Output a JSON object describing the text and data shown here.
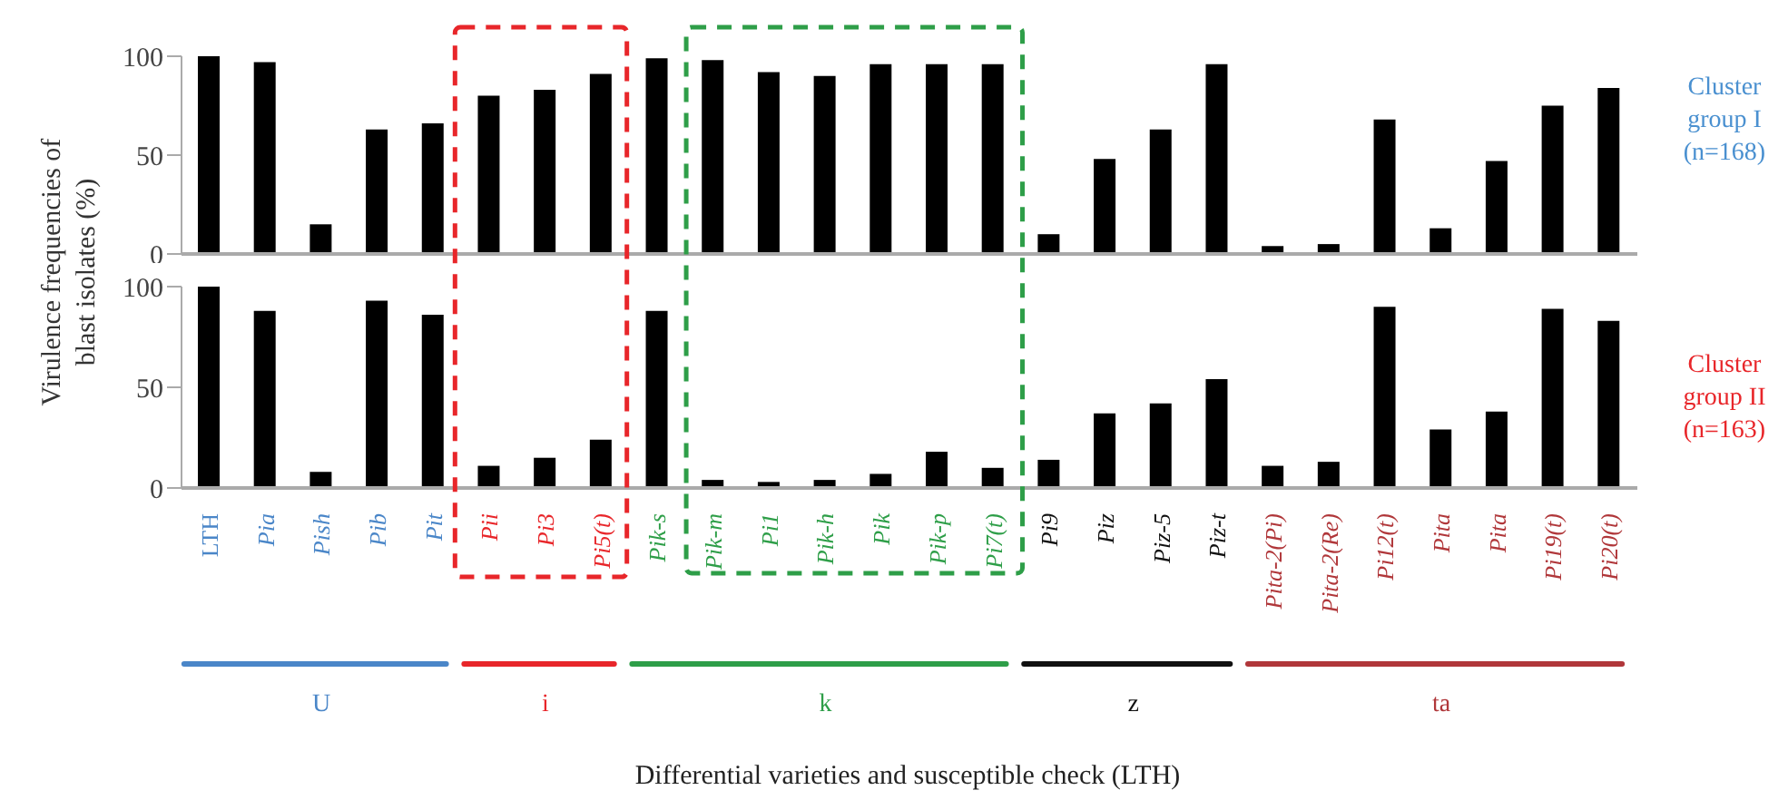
{
  "chart_data": [
    {
      "type": "bar",
      "ylabel": "Virulence frequencies of blast isolates (%)",
      "series": [
        {
          "name": "Cluster group I (n=168)",
          "color": "#000000",
          "values": [
            100,
            97,
            15,
            63,
            66,
            80,
            83,
            91,
            99,
            98,
            92,
            90,
            96,
            96,
            96,
            10,
            48,
            63,
            96,
            4,
            5,
            68,
            13,
            47,
            75,
            84
          ]
        }
      ],
      "ylim": [
        0,
        100
      ],
      "yticks": [
        0,
        50,
        100
      ],
      "tick_labels": "y"
    },
    {
      "type": "bar",
      "xlabel": "Differential varieties and susceptible check (LTH)",
      "categories": [
        "LTH",
        "Pia",
        "Pish",
        "Pib",
        "Pit",
        "Pii",
        "Pi3",
        "Pi5(t)",
        "Pik-s",
        "Pik-m",
        "Pi1",
        "Pik-h",
        "Pik",
        "Pik-p",
        "Pi7(t)",
        "Pi9",
        "Piz",
        "Piz-5",
        "Piz-t",
        "Pita-2(Pi)",
        "Pita-2(Re)",
        "Pi12(t)",
        "Pita",
        "Pita",
        "Pi19(t)",
        "Pi20(t)"
      ],
      "series": [
        {
          "name": "Cluster group II (n=163)",
          "color": "#000000",
          "values": [
            100,
            88,
            8,
            93,
            86,
            11,
            15,
            24,
            88,
            4,
            3,
            4,
            7,
            18,
            10,
            14,
            37,
            42,
            54,
            11,
            13,
            90,
            29,
            38,
            89,
            83
          ]
        }
      ],
      "ylim": [
        0,
        100
      ],
      "yticks": [
        0,
        50,
        100
      ],
      "annotations": [
        "U",
        "i",
        "k",
        "z",
        "ta"
      ]
    }
  ]
}
